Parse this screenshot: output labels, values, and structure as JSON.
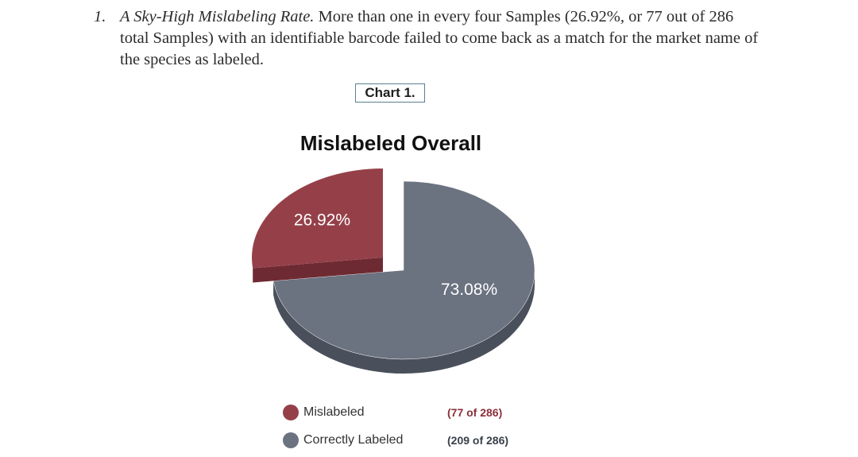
{
  "paragraph": {
    "number": "1.",
    "heading": "A Sky-High Mislabeling Rate.",
    "text": " More than one in every four Samples (26.92%, or 77 out of 286 total Samples) with an identifiable barcode failed to come back as a match for the market name of the species as labeled."
  },
  "chart_label": "Chart 1.",
  "chart_data": {
    "type": "pie",
    "title": "Mislabeled Overall",
    "slices": [
      {
        "name": "Mislabeled",
        "value": 26.92,
        "label": "26.92%",
        "count": "(77 of 286)",
        "color": "#954049",
        "side_color": "#6e2a32",
        "label_color": "#ffffff"
      },
      {
        "name": "Correctly Labeled",
        "value": 73.08,
        "label": "73.08%",
        "count": "(209 of 286)",
        "color": "#6b7280",
        "side_color": "#4a505b",
        "label_color": "#ffffff"
      }
    ],
    "legend_position": "bottom",
    "count_colors": [
      "#8a2f39",
      "#3a3f4a"
    ]
  }
}
